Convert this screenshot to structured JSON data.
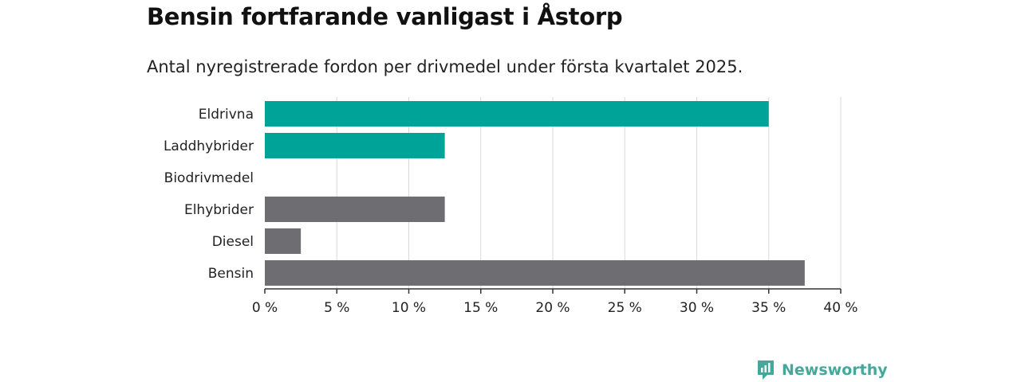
{
  "title": "Bensin fortfarande vanligast i Åstorp",
  "subtitle": "Antal nyregistrerade fordon per drivmedel under första kvartalet 2025.",
  "brand": {
    "name": "Newsworthy",
    "color": "#46a89a",
    "icon": "newsworthy-logo-icon"
  },
  "colors": {
    "highlight": "#00a398",
    "default": "#6e6d72",
    "grid": "#d9d9d9",
    "axis": "#333333"
  },
  "chart_data": {
    "type": "bar",
    "orientation": "horizontal",
    "categories": [
      "Eldrivna",
      "Laddhybrider",
      "Biodrivmedel",
      "Elhybrider",
      "Diesel",
      "Bensin"
    ],
    "values": [
      35,
      12.5,
      0,
      12.5,
      2.5,
      37.5
    ],
    "bar_colors": [
      "#00a398",
      "#00a398",
      "#6e6d72",
      "#6e6d72",
      "#6e6d72",
      "#6e6d72"
    ],
    "xlim": [
      0,
      40
    ],
    "x_ticks": [
      0,
      5,
      10,
      15,
      20,
      25,
      30,
      35,
      40
    ],
    "x_tick_labels": [
      "0 %",
      "5 %",
      "10 %",
      "15 %",
      "20 %",
      "25 %",
      "30 %",
      "35 %",
      "40 %"
    ],
    "grid": true,
    "legend": false
  }
}
